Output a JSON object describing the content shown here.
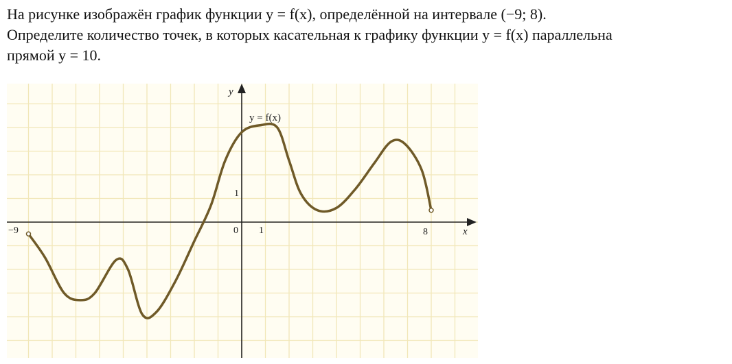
{
  "problem": {
    "line1": "На рисунке изображён график функции y = f(x), определённой на интервале (−9; 8).",
    "line2": "Определите количество точек, в которых касательная к графику функции y = f(x) параллельна",
    "line3": "прямой y = 10."
  },
  "chart_data": {
    "type": "line",
    "title": "",
    "xlabel": "x",
    "ylabel": "y",
    "curve_label": "y = f(x)",
    "x_domain": [
      -9,
      8
    ],
    "xlim": [
      -10,
      10
    ],
    "ylim": [
      -6,
      6
    ],
    "grid": true,
    "tick_labels": {
      "x_neg": "−9",
      "origin": "0",
      "x_one": "1",
      "x_end": "8",
      "y_one": "1"
    },
    "series": [
      {
        "points": [
          [
            -9,
            -0.5
          ],
          [
            -8.3,
            -1.5
          ],
          [
            -7.5,
            -3
          ],
          [
            -6.8,
            -3.3
          ],
          [
            -6.2,
            -3
          ],
          [
            -5.3,
            -1.6
          ],
          [
            -4.8,
            -2
          ],
          [
            -4.2,
            -3.9
          ],
          [
            -3.6,
            -3.8
          ],
          [
            -2.8,
            -2.5
          ],
          [
            -2,
            -0.8
          ],
          [
            -1.3,
            0.7
          ],
          [
            -0.7,
            2.6
          ],
          [
            0,
            3.8
          ],
          [
            0.8,
            4.1
          ],
          [
            1.5,
            4
          ],
          [
            2,
            2.6
          ],
          [
            2.5,
            1.2
          ],
          [
            3.2,
            0.5
          ],
          [
            4,
            0.6
          ],
          [
            4.8,
            1.4
          ],
          [
            5.6,
            2.5
          ],
          [
            6.3,
            3.4
          ],
          [
            6.9,
            3.3
          ],
          [
            7.6,
            2.2
          ],
          [
            8,
            0.5
          ]
        ]
      }
    ],
    "colors": {
      "curve": "#6f5a28",
      "grid": "#f1e7b8",
      "axes": "#222222",
      "paper": "#fffdf2"
    }
  }
}
